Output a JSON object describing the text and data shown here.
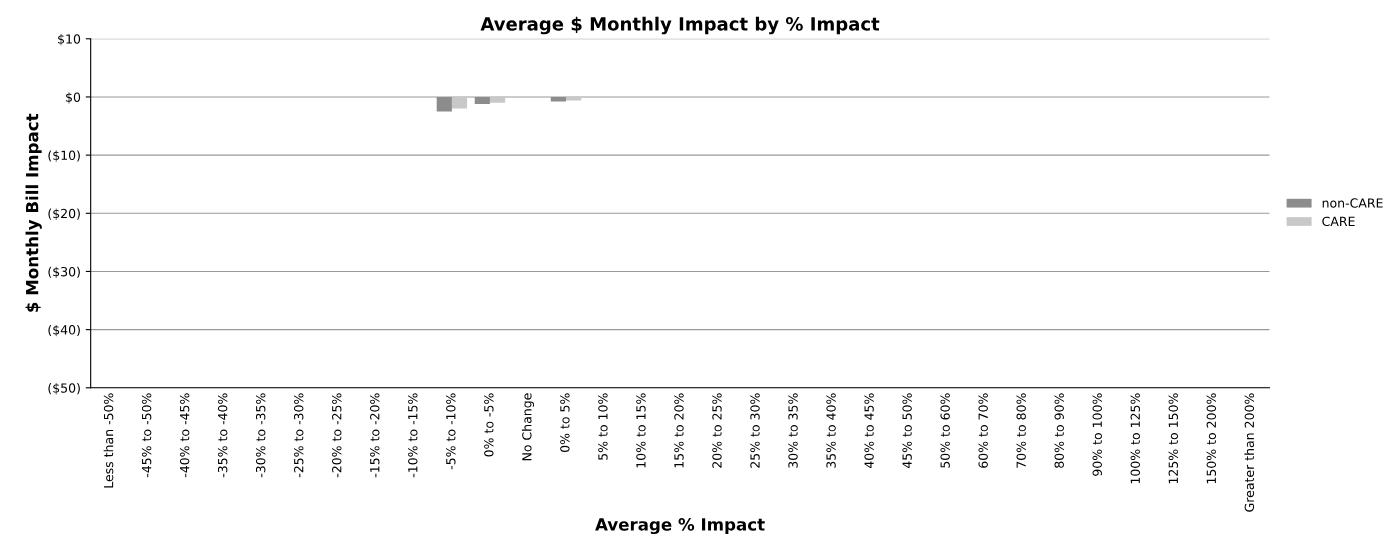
{
  "chart_data": {
    "type": "bar",
    "title": "Average $ Monthly Impact by % Impact",
    "xlabel": "Average % Impact",
    "ylabel": "$ Monthly Bill Impact",
    "categories": [
      "Less than -50%",
      "-45% to -50%",
      "-40% to -45%",
      "-35% to -40%",
      "-30% to -35%",
      "-25% to -30%",
      "-20% to -25%",
      "-15% to -20%",
      "-10% to -15%",
      "-5% to -10%",
      "0% to -5%",
      "No Change",
      "0% to 5%",
      "5% to 10%",
      "10% to 15%",
      "15% to 20%",
      "20% to 25%",
      "25% to 30%",
      "30% to 35%",
      "35% to 40%",
      "40% to 45%",
      "45% to 50%",
      "50% to 60%",
      "60% to 70%",
      "70% to 80%",
      "80% to 90%",
      "90% to 100%",
      "100% to 125%",
      "125% to 150%",
      "150% to 200%",
      "Greater than 200%"
    ],
    "series": [
      {
        "name": "non-CARE",
        "color": "#8c8c8c",
        "values": [
          0,
          0,
          0,
          0,
          0,
          0,
          0,
          0,
          0,
          -2.5,
          -1.2,
          0,
          -0.8,
          0,
          0,
          0,
          0,
          0,
          0,
          0,
          0,
          0,
          0,
          0,
          0,
          0,
          0,
          0,
          0,
          0,
          0
        ]
      },
      {
        "name": "CARE",
        "color": "#c8c8c8",
        "values": [
          0,
          0,
          0,
          0,
          0,
          0,
          0,
          0,
          0,
          -2.0,
          -1.0,
          0,
          -0.6,
          0,
          0,
          0,
          0,
          0,
          0,
          0,
          0,
          0,
          0,
          0,
          0,
          0,
          0,
          0,
          0,
          0,
          0
        ]
      }
    ],
    "ylim": [
      -50,
      10
    ],
    "yticks": [
      {
        "value": -50,
        "label": "($50)"
      },
      {
        "value": -40,
        "label": "($40)"
      },
      {
        "value": -30,
        "label": "($30)"
      },
      {
        "value": -20,
        "label": "($20)"
      },
      {
        "value": -10,
        "label": "($10)"
      },
      {
        "value": 0,
        "label": "$0"
      },
      {
        "value": 10,
        "label": "$10"
      }
    ],
    "grid": "y",
    "legend": "right"
  }
}
